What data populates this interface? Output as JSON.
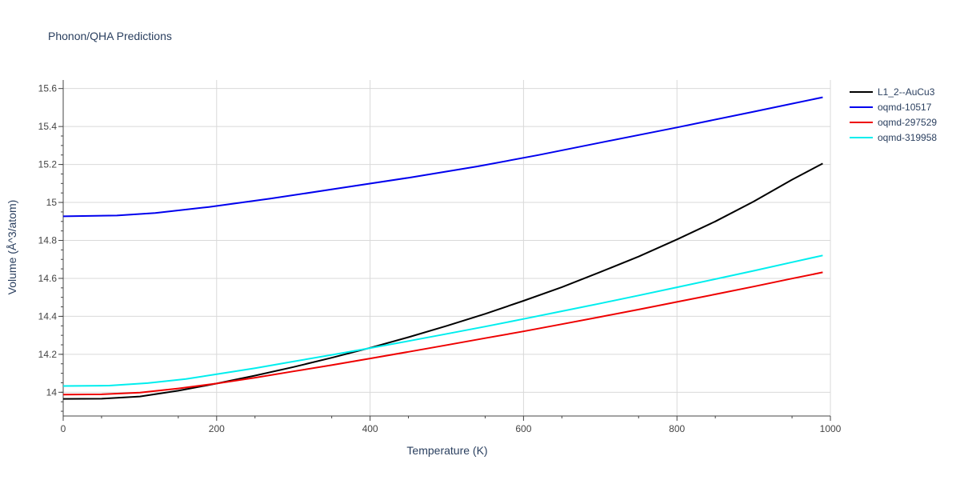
{
  "chart_data": {
    "type": "line",
    "title": "Phonon/QHA Predictions",
    "xlabel": "Temperature (K)",
    "ylabel": "Volume (Å^3/atom)",
    "xlim": [
      0,
      1000
    ],
    "ylim": [
      13.875,
      15.645
    ],
    "xticks": [
      0,
      200,
      400,
      600,
      800,
      1000
    ],
    "yticks": [
      14,
      14.2,
      14.4,
      14.6,
      14.8,
      15,
      15.2,
      15.4,
      15.6
    ],
    "xtick_labels": [
      "0",
      "200",
      "400",
      "600",
      "800",
      "1000"
    ],
    "ytick_labels": [
      "14",
      "14.2",
      "14.4",
      "14.6",
      "14.8",
      "15",
      "15.2",
      "15.4",
      "15.6"
    ],
    "grid": true,
    "legend_position": "top-right",
    "series": [
      {
        "name": "L1_2--AuCu3",
        "color": "#000000",
        "x": [
          0,
          50,
          100,
          150,
          200,
          250,
          300,
          350,
          400,
          450,
          500,
          550,
          600,
          650,
          700,
          750,
          800,
          850,
          900,
          950,
          990
        ],
        "y": [
          13.965,
          13.966,
          13.978,
          14.008,
          14.046,
          14.088,
          14.133,
          14.182,
          14.234,
          14.29,
          14.35,
          14.413,
          14.482,
          14.554,
          14.633,
          14.715,
          14.805,
          14.9,
          15.005,
          15.12,
          15.205
        ]
      },
      {
        "name": "oqmd-10517",
        "color": "#0000ee",
        "x": [
          0,
          70,
          120,
          190,
          270,
          360,
          450,
          540,
          620,
          700,
          800,
          900,
          990
        ],
        "y": [
          14.927,
          14.931,
          14.944,
          14.976,
          15.02,
          15.075,
          15.13,
          15.19,
          15.25,
          15.315,
          15.395,
          15.478,
          15.554
        ]
      },
      {
        "name": "oqmd-297529",
        "color": "#ee0000",
        "x": [
          0,
          50,
          100,
          150,
          200,
          250,
          300,
          350,
          400,
          450,
          500,
          550,
          600,
          650,
          700,
          750,
          800,
          850,
          900,
          950,
          990
        ],
        "y": [
          13.988,
          13.989,
          13.998,
          14.02,
          14.046,
          14.077,
          14.11,
          14.143,
          14.178,
          14.213,
          14.249,
          14.285,
          14.321,
          14.359,
          14.397,
          14.436,
          14.476,
          14.516,
          14.557,
          14.599,
          14.632
        ]
      },
      {
        "name": "oqmd-319958",
        "color": "#00eeee",
        "x": [
          0,
          60,
          110,
          160,
          200,
          250,
          300,
          350,
          400,
          450,
          500,
          550,
          600,
          650,
          700,
          750,
          800,
          850,
          900,
          950,
          990
        ],
        "y": [
          14.033,
          14.035,
          14.048,
          14.07,
          14.095,
          14.127,
          14.162,
          14.197,
          14.233,
          14.27,
          14.308,
          14.346,
          14.386,
          14.427,
          14.468,
          14.51,
          14.553,
          14.596,
          14.64,
          14.685,
          14.721
        ]
      }
    ]
  }
}
